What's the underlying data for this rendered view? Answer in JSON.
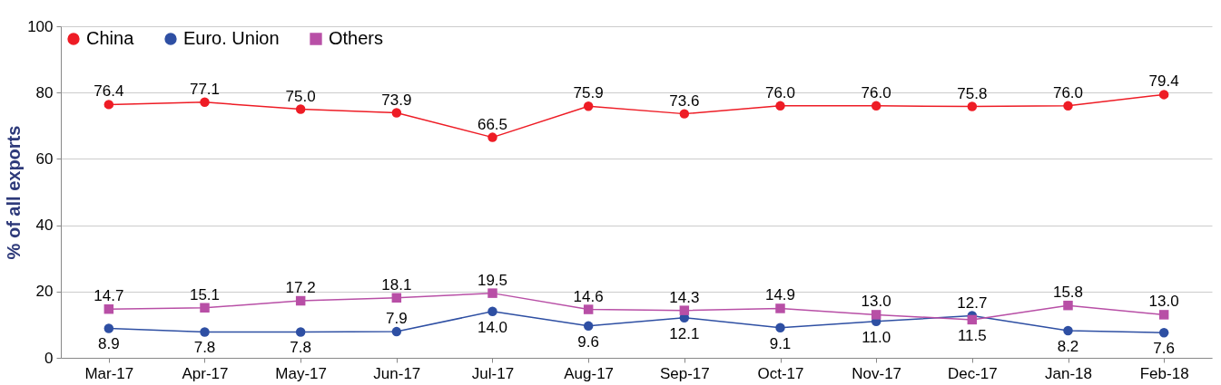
{
  "chart_data": {
    "type": "line",
    "ylabel": "% of all exports",
    "categories": [
      "Mar-17",
      "Apr-17",
      "May-17",
      "Jun-17",
      "Jul-17",
      "Aug-17",
      "Sep-17",
      "Oct-17",
      "Nov-17",
      "Dec-17",
      "Jan-18",
      "Feb-18"
    ],
    "series": [
      {
        "name": "China",
        "color": "#ee1c25",
        "marker": "circle",
        "values": [
          76.4,
          77.1,
          75.0,
          73.9,
          66.5,
          75.9,
          73.6,
          76.0,
          76.0,
          75.8,
          76.0,
          79.4
        ],
        "value_labels": [
          "76.4",
          "77.1",
          "75.0",
          "73.9",
          "66.5",
          "75.9",
          "73.6",
          "76.0",
          "76.0",
          "75.8",
          "76.0",
          "79.4"
        ]
      },
      {
        "name": "Euro. Union",
        "color": "#2e4fa3",
        "marker": "circle",
        "values": [
          8.9,
          7.8,
          7.8,
          7.9,
          14.0,
          9.6,
          12.1,
          9.1,
          11.0,
          12.7,
          8.2,
          7.6
        ],
        "value_labels": [
          "8.9",
          "7.8",
          "7.8",
          "7.9",
          "14.0",
          "9.6",
          "12.1",
          "9.1",
          "11.0",
          "12.7",
          "8.2",
          "7.6"
        ]
      },
      {
        "name": "Others",
        "color": "#b84fa6",
        "marker": "square",
        "values": [
          14.7,
          15.1,
          17.2,
          18.1,
          19.5,
          14.6,
          14.3,
          14.9,
          13.0,
          11.5,
          15.8,
          13.0
        ],
        "value_labels": [
          "14.7",
          "15.1",
          "17.2",
          "18.1",
          "19.5",
          "14.6",
          "14.3",
          "14.9",
          "13.0",
          "11.5",
          "15.8",
          "13.0"
        ]
      }
    ],
    "ylim": [
      0,
      100
    ],
    "yticks": [
      0,
      20,
      40,
      60,
      80,
      100
    ],
    "grid": "y",
    "legend": "top left",
    "line_style": "solid"
  }
}
